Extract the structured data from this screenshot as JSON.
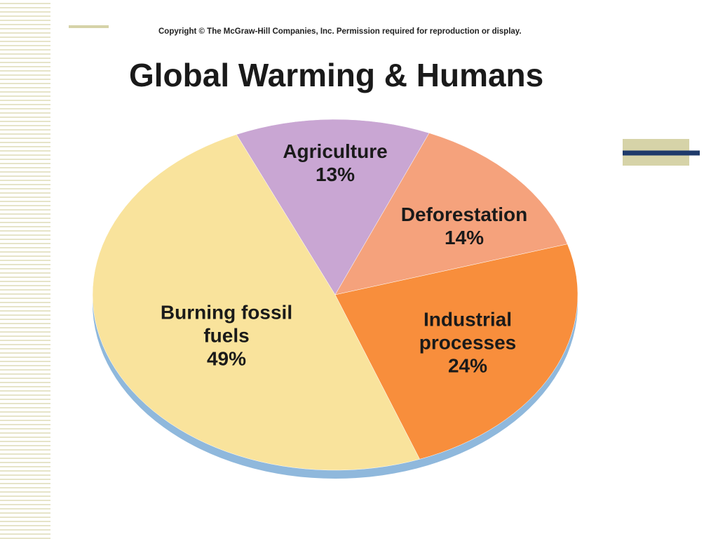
{
  "chart_data": {
    "type": "pie",
    "copyright": "Copyright © The McGraw-Hill Companies, Inc. Permission required for reproduction or display.",
    "title": "Global Warming & Humans",
    "categories": [
      "Agriculture",
      "Deforestation",
      "Industrial processes",
      "Burning fossil fuels"
    ],
    "values": [
      13,
      14,
      24,
      49
    ],
    "value_labels": [
      "13%",
      "14%",
      "24%",
      "49%"
    ],
    "colors": [
      "#c9a6d3",
      "#f5a27c",
      "#f88e3c",
      "#f9e39c"
    ]
  }
}
